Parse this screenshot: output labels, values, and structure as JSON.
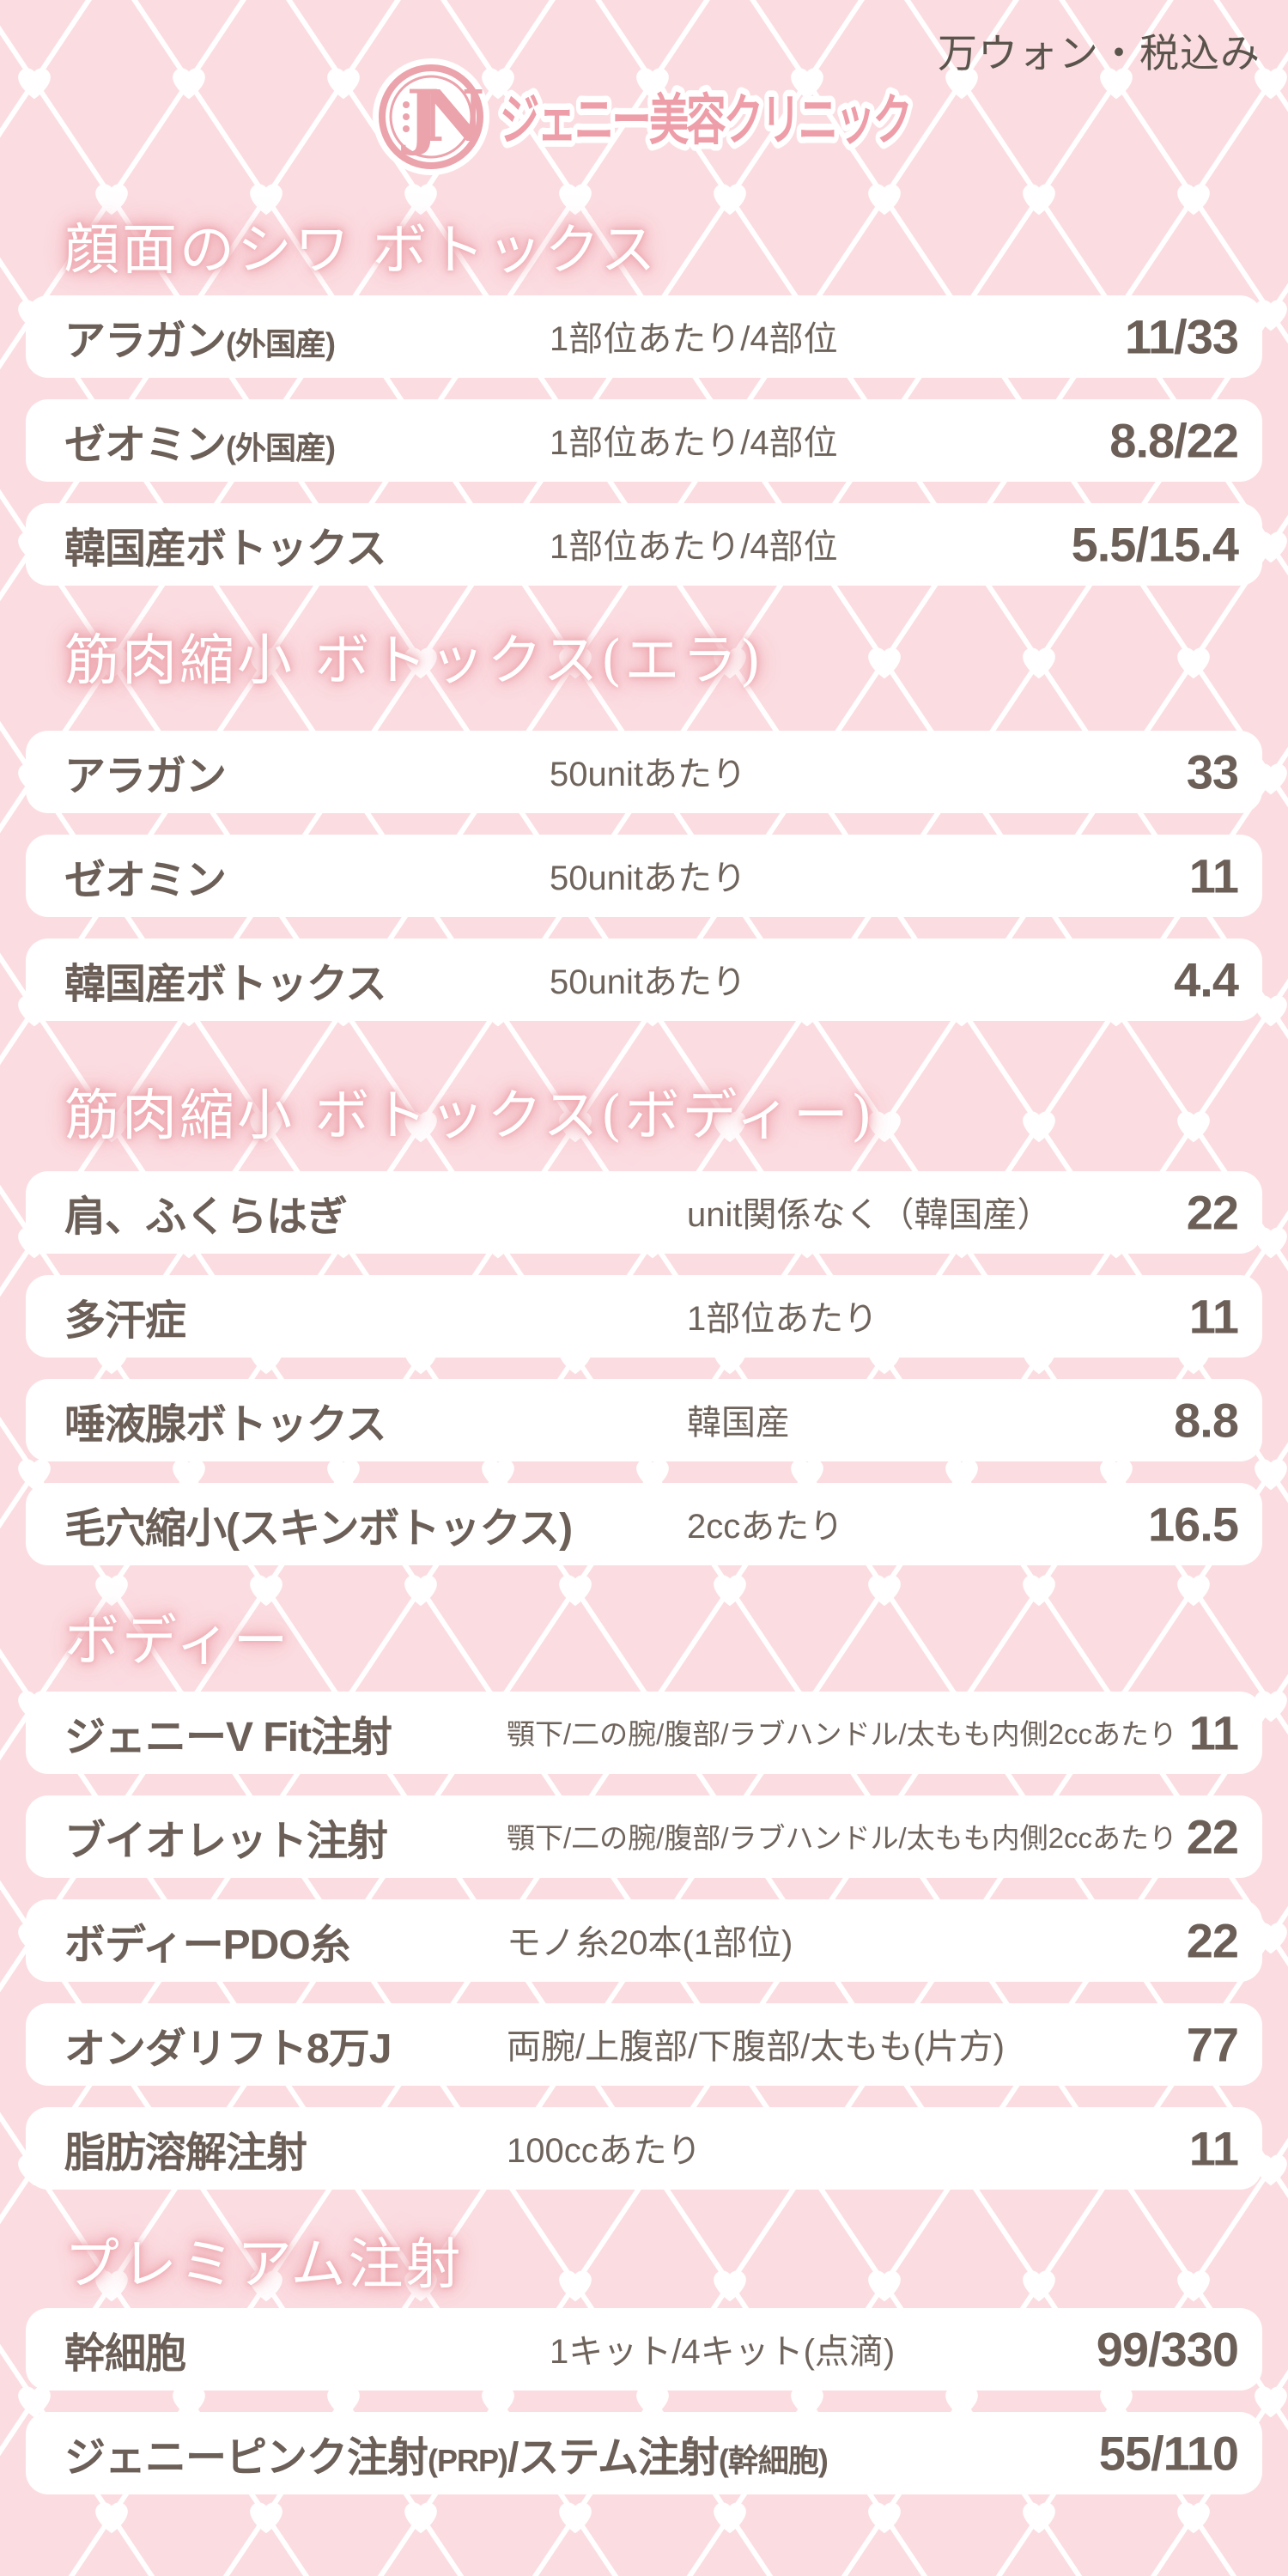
{
  "page": {
    "bg_color": "#fbdde1",
    "pattern_line_color": "#ffffff",
    "heart_color": "#ffffff",
    "row_bg_color": "#ffffff",
    "text_color": "#6b5f57",
    "accent_pink": "#ee9ea8",
    "header_glow_pink": "#eda3ab",
    "note_color": "#5b544c"
  },
  "header": {
    "currency_note": "万ウォン・税込み",
    "clinic_name": "ジェニー美容クリニック",
    "logo_monogram": "JN"
  },
  "sections": [
    {
      "title": "顔面のシワ ボトックス",
      "rows": [
        {
          "name": [
            {
              "t": "アラガン"
            },
            {
              "t": "(外国産)",
              "small": true
            }
          ],
          "desc": "1部位あたり/4部位",
          "price": "11/33"
        },
        {
          "name": [
            {
              "t": "ゼオミン"
            },
            {
              "t": "(外国産)",
              "small": true
            }
          ],
          "desc": "1部位あたり/4部位",
          "price": "8.8/22"
        },
        {
          "name": [
            {
              "t": "韓国産ボトックス"
            }
          ],
          "desc": "1部位あたり/4部位",
          "price": "5.5/15.4"
        }
      ]
    },
    {
      "title": "筋肉縮小 ボトックス(エラ)",
      "rows": [
        {
          "name": [
            {
              "t": "アラガン"
            }
          ],
          "desc": "50unitあたり",
          "price": "33"
        },
        {
          "name": [
            {
              "t": "ゼオミン"
            }
          ],
          "desc": "50unitあたり",
          "price": "11"
        },
        {
          "name": [
            {
              "t": "韓国産ボトックス"
            }
          ],
          "desc": "50unitあたり",
          "price": "4.4"
        }
      ]
    },
    {
      "title": "筋肉縮小 ボトックス(ボディー)",
      "rows": [
        {
          "name": [
            {
              "t": "肩、ふくらはぎ"
            }
          ],
          "desc": "unit関係なく（韓国産）",
          "price": "22"
        },
        {
          "name": [
            {
              "t": "多汗症"
            }
          ],
          "desc": "1部位あたり",
          "price": "11"
        },
        {
          "name": [
            {
              "t": "唾液腺ボトックス"
            }
          ],
          "desc": "韓国産",
          "price": "8.8"
        },
        {
          "name": [
            {
              "t": "毛穴縮小(スキンボトックス)"
            }
          ],
          "desc": "2ccあたり",
          "price": "16.5"
        }
      ]
    },
    {
      "title": "ボディー",
      "rows": [
        {
          "name": [
            {
              "t": "ジェニーV Fit注射"
            }
          ],
          "desc": "顎下/二の腕/腹部/ラブハンドル/太もも内側2ccあたり",
          "desc_small": true,
          "price": "11"
        },
        {
          "name": [
            {
              "t": "ブイオレット注射"
            }
          ],
          "desc": "顎下/二の腕/腹部/ラブハンドル/太もも内側2ccあたり",
          "desc_small": true,
          "price": "22"
        },
        {
          "name": [
            {
              "t": "ボディーPDO糸"
            }
          ],
          "desc": "モノ糸20本(1部位)",
          "price": "22"
        },
        {
          "name": [
            {
              "t": "オンダリフト8万J"
            }
          ],
          "desc": "両腕/上腹部/下腹部/太もも(片方)",
          "price": "77"
        },
        {
          "name": [
            {
              "t": "脂肪溶解注射"
            }
          ],
          "desc": "100ccあたり",
          "price": "11"
        }
      ]
    },
    {
      "title": "プレミアム注射",
      "rows": [
        {
          "name": [
            {
              "t": "幹細胞"
            }
          ],
          "desc": "1キット/4キット(点滴)",
          "price": "99/330"
        },
        {
          "name": [
            {
              "t": "ジェニーピンク注射"
            },
            {
              "t": "(PRP)",
              "small": true
            },
            {
              "t": "/ステム注射"
            },
            {
              "t": "(幹細胞)",
              "small": true
            }
          ],
          "desc": "",
          "price": "55/110"
        }
      ]
    }
  ]
}
